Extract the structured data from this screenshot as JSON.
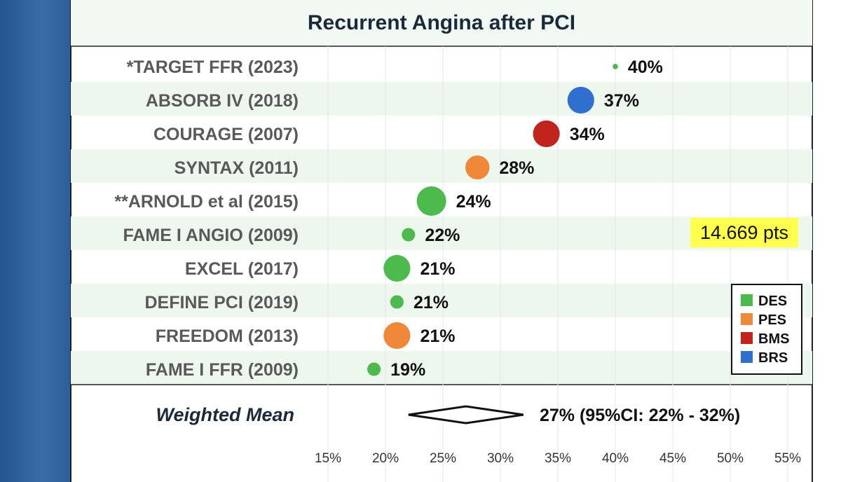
{
  "colors": {
    "DES": "#4cba4c",
    "PES": "#f0883a",
    "BMS": "#c0241c",
    "BRS": "#2f6fd0",
    "header_bg": "#f2f9f2",
    "stripe_bg": "#eef7ee"
  },
  "badge": {
    "text": "14.669 pts"
  },
  "chart_data": {
    "type": "scatter",
    "title": "Recurrent Angina after PCI",
    "xlabel": "",
    "ylabel": "",
    "xlim": [
      15,
      55
    ],
    "x_ticks": [
      "15%",
      "20%",
      "25%",
      "30%",
      "35%",
      "40%",
      "45%",
      "50%",
      "55%"
    ],
    "x_tick_values": [
      15,
      20,
      25,
      30,
      35,
      40,
      45,
      50,
      55
    ],
    "grid": true,
    "legend_position": "bottom-right",
    "legend": [
      {
        "name": "DES",
        "color": "#4cba4c"
      },
      {
        "name": "PES",
        "color": "#f0883a"
      },
      {
        "name": "BMS",
        "color": "#c0241c"
      },
      {
        "name": "BRS",
        "color": "#2f6fd0"
      }
    ],
    "studies": [
      {
        "name": "*TARGET FFR (2023)",
        "value": 40,
        "label": "40%",
        "group": "DES",
        "size": 1
      },
      {
        "name": "ABSORB IV (2018)",
        "value": 37,
        "label": "37%",
        "group": "BRS",
        "size": 5
      },
      {
        "name": "COURAGE (2007)",
        "value": 34,
        "label": "34%",
        "group": "BMS",
        "size": 5
      },
      {
        "name": "SYNTAX (2011)",
        "value": 28,
        "label": "28%",
        "group": "PES",
        "size": 4.5
      },
      {
        "name": "**ARNOLD et al (2015)",
        "value": 24,
        "label": "24%",
        "group": "DES",
        "size": 5.5
      },
      {
        "name": "FAME I ANGIO (2009)",
        "value": 22,
        "label": "22%",
        "group": "DES",
        "size": 2.5
      },
      {
        "name": "EXCEL (2017)",
        "value": 21,
        "label": "21%",
        "group": "DES",
        "size": 5
      },
      {
        "name": "DEFINE PCI (2019)",
        "value": 21,
        "label": "21%",
        "group": "DES",
        "size": 2.5
      },
      {
        "name": "FREEDOM (2013)",
        "value": 21,
        "label": "21%",
        "group": "PES",
        "size": 5
      },
      {
        "name": "FAME I FFR (2009)",
        "value": 19,
        "label": "19%",
        "group": "DES",
        "size": 2.5
      }
    ],
    "weighted_mean": {
      "label": "Weighted Mean",
      "value": 27,
      "ci": [
        22,
        32
      ],
      "text": "27% (95%CI: 22% - 32%)"
    }
  }
}
